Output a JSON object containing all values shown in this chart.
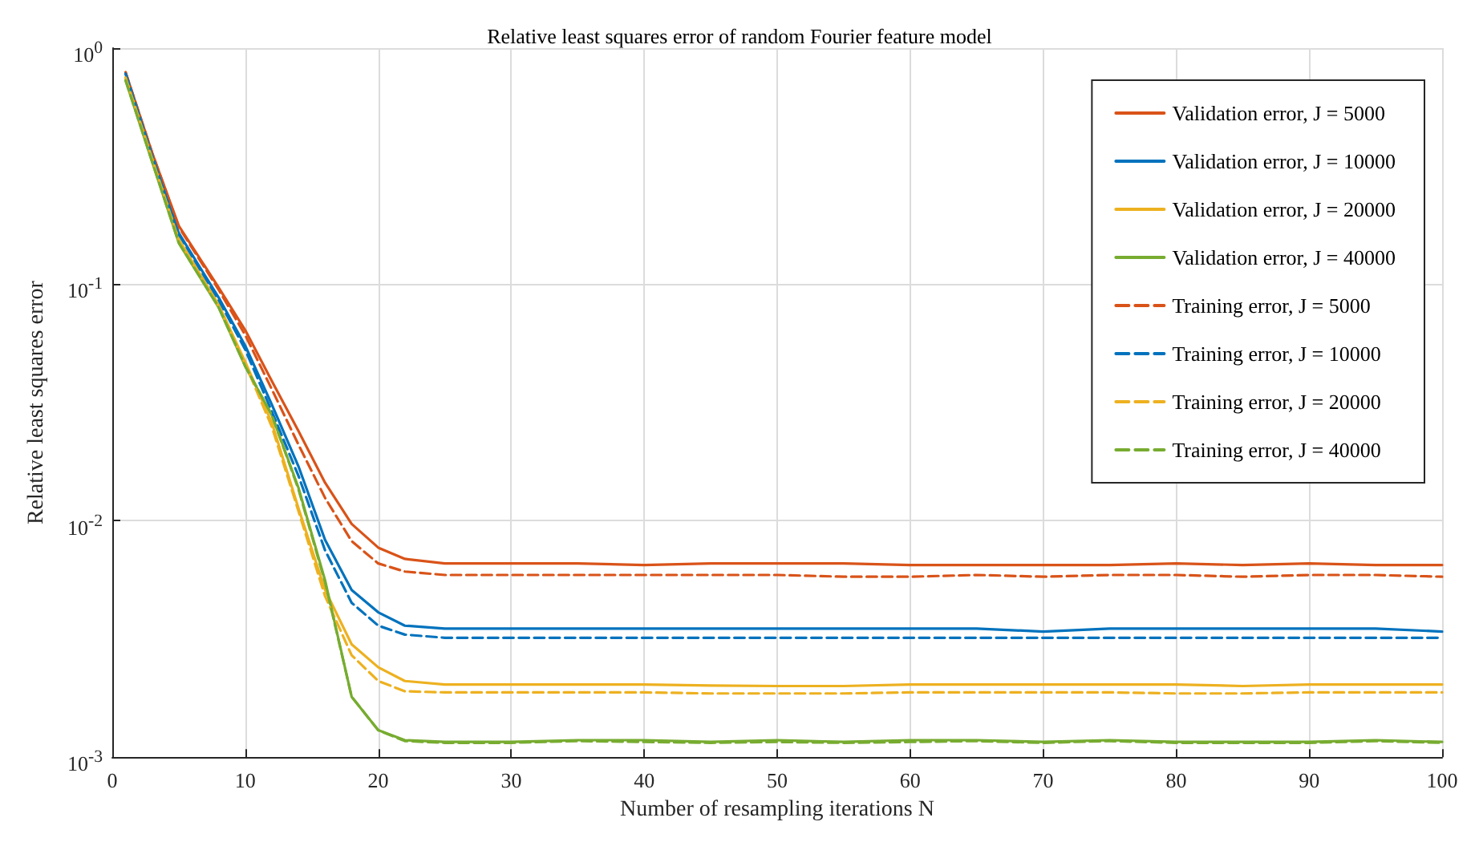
{
  "chart_data": {
    "type": "line",
    "title": "Relative least squares error of random Fourier feature model",
    "xlabel": "Number of resampling iterations N",
    "ylabel": "Relative least squares error",
    "x": [
      1,
      3,
      5,
      8,
      10,
      12,
      14,
      16,
      18,
      20,
      22,
      25,
      30,
      35,
      40,
      45,
      50,
      55,
      60,
      65,
      70,
      75,
      80,
      85,
      90,
      95,
      100
    ],
    "series": [
      {
        "name": "Validation error, J = 5000",
        "color": "#d95319",
        "line_style": "solid",
        "values": [
          0.79,
          0.36,
          0.177,
          0.097,
          0.064,
          0.039,
          0.024,
          0.0145,
          0.0097,
          0.0077,
          0.0069,
          0.0066,
          0.0066,
          0.0066,
          0.0065,
          0.0066,
          0.0066,
          0.0066,
          0.0065,
          0.0065,
          0.0065,
          0.0065,
          0.0066,
          0.0065,
          0.0066,
          0.0065,
          0.0065
        ]
      },
      {
        "name": "Validation error, J = 10000",
        "color": "#0072bd",
        "line_style": "solid",
        "values": [
          0.78,
          0.35,
          0.165,
          0.088,
          0.055,
          0.031,
          0.017,
          0.0083,
          0.0051,
          0.0041,
          0.0036,
          0.0035,
          0.0035,
          0.0035,
          0.0035,
          0.0035,
          0.0035,
          0.0035,
          0.0035,
          0.0035,
          0.0034,
          0.0035,
          0.0035,
          0.0035,
          0.0035,
          0.0035,
          0.0034
        ]
      },
      {
        "name": "Validation error, J = 20000",
        "color": "#edb120",
        "line_style": "solid",
        "values": [
          0.75,
          0.34,
          0.155,
          0.082,
          0.047,
          0.026,
          0.0113,
          0.0051,
          0.003,
          0.0024,
          0.0021,
          0.00203,
          0.00203,
          0.00203,
          0.00203,
          0.00201,
          0.002,
          0.002,
          0.00203,
          0.00203,
          0.00203,
          0.00203,
          0.00203,
          0.002,
          0.00203,
          0.00203,
          0.00203
        ]
      },
      {
        "name": "Validation error, J = 40000",
        "color": "#77ac30",
        "line_style": "solid",
        "values": [
          0.73,
          0.33,
          0.15,
          0.08,
          0.045,
          0.028,
          0.0138,
          0.0056,
          0.0018,
          0.0013,
          0.00118,
          0.00116,
          0.00116,
          0.00118,
          0.00118,
          0.00116,
          0.00118,
          0.00116,
          0.00118,
          0.00118,
          0.00116,
          0.00118,
          0.00116,
          0.00116,
          0.00116,
          0.00118,
          0.00116
        ]
      },
      {
        "name": "Training error, J = 5000",
        "color": "#d95319",
        "line_style": "dashed",
        "values": [
          0.79,
          0.36,
          0.175,
          0.095,
          0.061,
          0.036,
          0.021,
          0.0125,
          0.0082,
          0.0066,
          0.0061,
          0.0059,
          0.0059,
          0.0059,
          0.0059,
          0.0059,
          0.0059,
          0.0058,
          0.0058,
          0.0059,
          0.0058,
          0.0059,
          0.0059,
          0.0058,
          0.0059,
          0.0059,
          0.0058
        ]
      },
      {
        "name": "Training error, J = 10000",
        "color": "#0072bd",
        "line_style": "dashed",
        "values": [
          0.78,
          0.35,
          0.163,
          0.086,
          0.053,
          0.029,
          0.0155,
          0.0075,
          0.0045,
          0.0036,
          0.0033,
          0.0032,
          0.0032,
          0.0032,
          0.0032,
          0.0032,
          0.0032,
          0.0032,
          0.0032,
          0.0032,
          0.0032,
          0.0032,
          0.0032,
          0.0032,
          0.0032,
          0.0032,
          0.0032
        ]
      },
      {
        "name": "Training error, J = 20000",
        "color": "#edb120",
        "line_style": "dashed",
        "values": [
          0.75,
          0.34,
          0.154,
          0.081,
          0.046,
          0.025,
          0.011,
          0.0048,
          0.0027,
          0.0021,
          0.0019,
          0.00188,
          0.00188,
          0.00188,
          0.00188,
          0.00186,
          0.00186,
          0.00186,
          0.00188,
          0.00188,
          0.00188,
          0.00188,
          0.00186,
          0.00186,
          0.00188,
          0.00188,
          0.00188
        ]
      },
      {
        "name": "Training error, J = 40000",
        "color": "#77ac30",
        "line_style": "dashed",
        "values": [
          0.73,
          0.33,
          0.15,
          0.08,
          0.045,
          0.028,
          0.0136,
          0.0055,
          0.0018,
          0.0013,
          0.00117,
          0.00115,
          0.00115,
          0.00117,
          0.00116,
          0.00115,
          0.00116,
          0.00115,
          0.00116,
          0.00117,
          0.00115,
          0.00117,
          0.00115,
          0.00115,
          0.00115,
          0.00117,
          0.00115
        ]
      }
    ],
    "xlim": [
      0,
      100
    ],
    "xticks": [
      0,
      10,
      20,
      30,
      40,
      50,
      60,
      70,
      80,
      90,
      100
    ],
    "ylim": [
      0.001,
      1
    ],
    "yticks": [
      {
        "value": 0.001,
        "label": "10$^{-3}$"
      },
      {
        "value": 0.01,
        "label": "10$^{-2}$"
      },
      {
        "value": 0.1,
        "label": "10$^{-1}$"
      },
      {
        "value": 1,
        "label": "10$^{0}$"
      }
    ],
    "log": "y",
    "grid": true,
    "legend": "top right",
    "marker": "none"
  }
}
